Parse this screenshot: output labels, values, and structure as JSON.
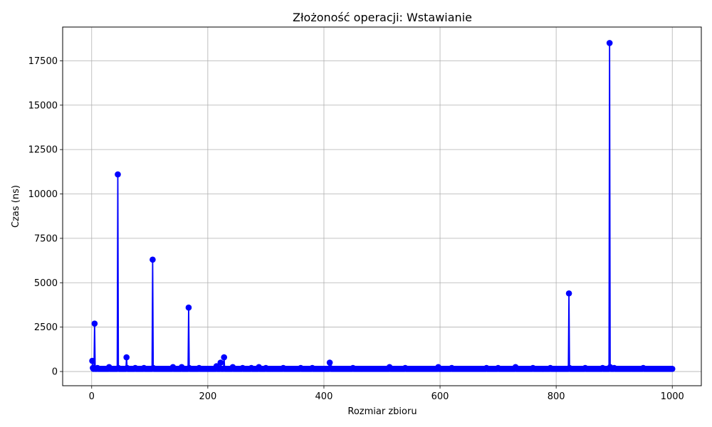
{
  "chart_data": {
    "type": "line",
    "title": "Złożoność operacji: Wstawianie",
    "xlabel": "Rozmiar zbioru",
    "ylabel": "Czas (ns)",
    "xlim": [
      -50,
      1050
    ],
    "ylim": [
      -800,
      19400
    ],
    "x_ticks": [
      0,
      200,
      400,
      600,
      800,
      1000
    ],
    "y_ticks": [
      0,
      2500,
      5000,
      7500,
      10000,
      12500,
      15000,
      17500
    ],
    "grid": true,
    "legend": "none",
    "color": "#0000ff",
    "baseline": 150,
    "series": [
      {
        "x_start": 1,
        "x_end": 1000,
        "x_step": 1,
        "default_value": 150,
        "values_at": {
          "1": 600,
          "2": 200,
          "5": 2700,
          "10": 200,
          "20": 150,
          "30": 250,
          "40": 150,
          "45": 11100,
          "46": 200,
          "60": 800,
          "61": 200,
          "75": 200,
          "90": 200,
          "105": 6300,
          "106": 200,
          "140": 250,
          "155": 250,
          "167": 3600,
          "168": 200,
          "185": 200,
          "215": 300,
          "222": 500,
          "228": 800,
          "243": 250,
          "260": 200,
          "275": 200,
          "288": 250,
          "300": 200,
          "330": 200,
          "360": 200,
          "380": 200,
          "410": 500,
          "411": 200,
          "450": 200,
          "500": 150,
          "513": 250,
          "540": 200,
          "597": 250,
          "620": 200,
          "680": 200,
          "700": 200,
          "730": 250,
          "760": 200,
          "790": 200,
          "822": 4400,
          "823": 200,
          "850": 200,
          "880": 200,
          "892": 18500,
          "893": 250,
          "900": 200,
          "950": 200,
          "1000": 150
        }
      }
    ]
  }
}
